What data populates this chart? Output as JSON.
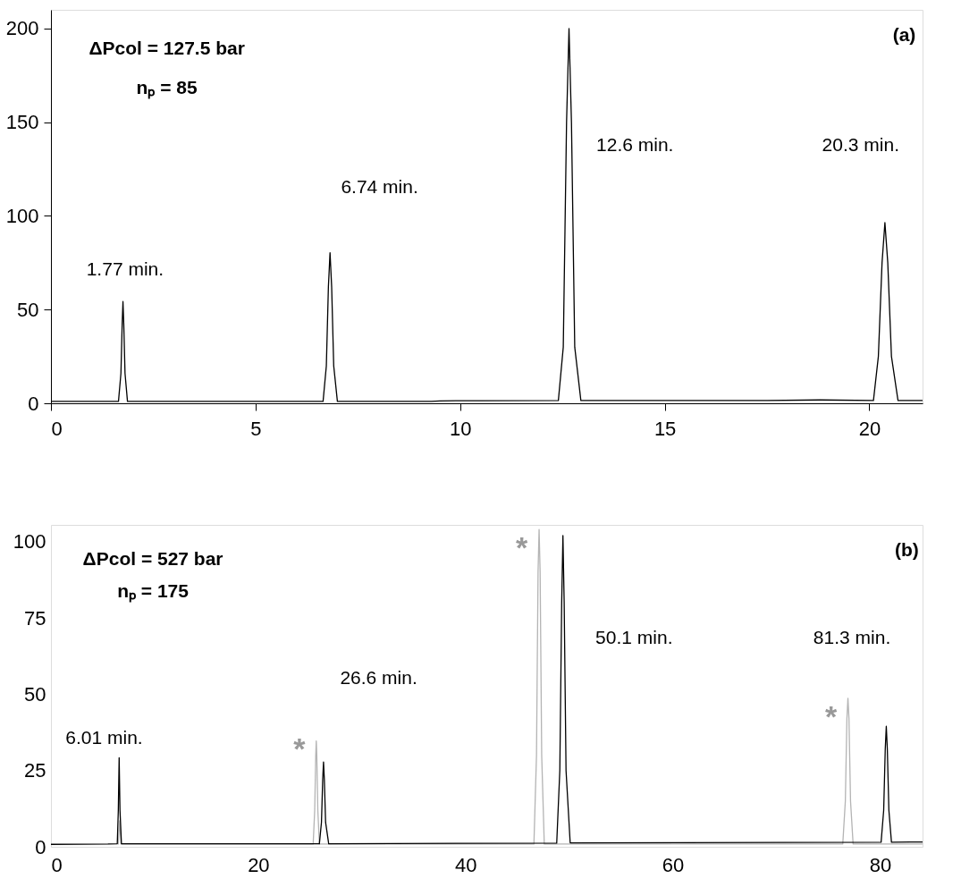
{
  "chart_data": [
    {
      "type": "line",
      "xlim": [
        0,
        21.3
      ],
      "ylim": [
        0,
        210
      ],
      "xticks": [
        0,
        5,
        10,
        15,
        20
      ],
      "yticks": [
        0,
        50,
        100,
        150,
        200
      ],
      "grid": false,
      "marker": "none",
      "line_style": "solid",
      "series": [
        {
          "color": "#000000",
          "x": [
            0,
            1.65,
            1.71,
            1.74,
            1.76,
            1.78,
            1.81,
            1.87,
            6.65,
            6.73,
            6.78,
            6.82,
            6.86,
            6.91,
            7.0,
            9.3,
            9.5,
            10.5,
            12.4,
            12.52,
            12.6,
            12.66,
            12.72,
            12.8,
            12.95,
            17.5,
            18.8,
            20.1,
            20.22,
            20.31,
            20.38,
            20.45,
            20.54,
            20.7,
            21.3
          ],
          "values": [
            1,
            1,
            16,
            42,
            54.3,
            42,
            16,
            1,
            1,
            20,
            62,
            80.4,
            62,
            20,
            1,
            1,
            1.3,
            1.4,
            1.5,
            30,
            150,
            200,
            150,
            30,
            1.5,
            1.5,
            1.8,
            1.5,
            25,
            75,
            96.4,
            75,
            25,
            1.5,
            1.5
          ]
        }
      ],
      "annotations": [
        "1.77 min.",
        "6.74 min.",
        "12.6 min.",
        "20.3 min.",
        "(a)",
        "ΔPcol = 127.5 bar",
        "nₚ = 85"
      ]
    },
    {
      "type": "line",
      "xlim": [
        0,
        84.1
      ],
      "ylim": [
        0,
        105.5
      ],
      "xticks": [
        0,
        20,
        40,
        60,
        80
      ],
      "yticks": [
        0,
        25,
        50,
        75,
        100
      ],
      "grid": false,
      "marker": "none",
      "line_style": "solid",
      "series": [
        {
          "color": "#b4b4b4",
          "x": [
            6.5,
            6.63,
            6.76,
            25.3,
            25.45,
            25.55,
            25.6,
            25.65,
            25.75,
            25.9,
            46.6,
            46.85,
            47.0,
            47.1,
            47.2,
            47.35,
            47.6,
            76.4,
            76.65,
            76.8,
            76.9,
            77.0,
            77.15,
            77.4,
            84.1
          ],
          "values": [
            0.9,
            8.5,
            0.9,
            0.9,
            12,
            30,
            34.7,
            30,
            12,
            0.9,
            0.9,
            30,
            90,
            104,
            90,
            30,
            0.9,
            0.9,
            15,
            42,
            48.7,
            42,
            15,
            0.9,
            0.9
          ]
        },
        {
          "color": "#000000",
          "x": [
            0,
            5.5,
            6.4,
            6.5,
            6.58,
            6.66,
            6.8,
            25.9,
            26.1,
            26.22,
            26.3,
            26.38,
            26.5,
            26.8,
            48.8,
            49.1,
            49.28,
            49.4,
            49.52,
            49.7,
            50.1,
            80.1,
            80.35,
            80.5,
            80.6,
            80.7,
            80.85,
            81.1,
            84.1
          ],
          "values": [
            0.8,
            0.9,
            1,
            12,
            29.2,
            12,
            1,
            1,
            8,
            22,
            27.8,
            22,
            8,
            1,
            1.2,
            25,
            80,
            102,
            80,
            25,
            1.3,
            1.5,
            12,
            32,
            39.5,
            32,
            12,
            1.5,
            1.6
          ]
        }
      ],
      "annotations": [
        "6.01 min.",
        "26.6 min.",
        "50.1 min.",
        "81.3 min.",
        "*",
        "*",
        "*",
        "(b)",
        "ΔPcol = 527 bar",
        "nₚ = 175"
      ]
    }
  ]
}
